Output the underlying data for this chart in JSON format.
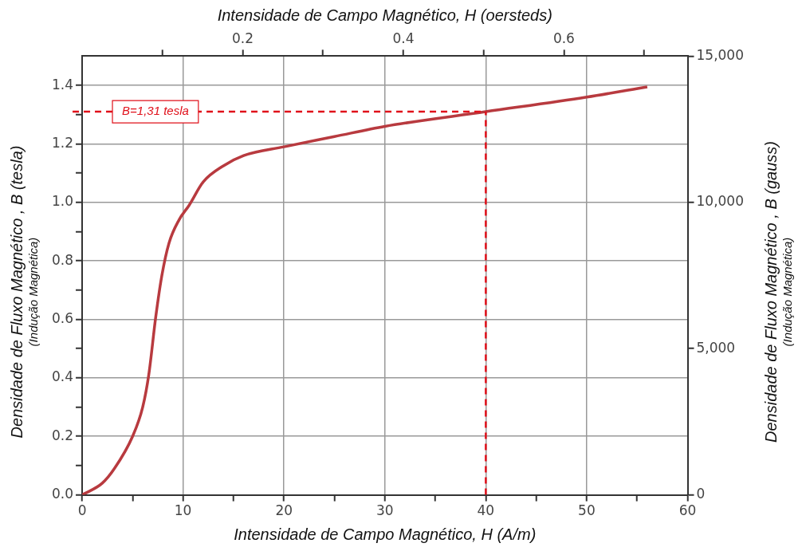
{
  "chart_data": {
    "type": "line",
    "xlabel": "Intensidade de Campo Magnético, H (A/m)",
    "x2label": "Intensidade de Campo Magnético, H (oersteds)",
    "ylabel": "Densidade de Fluxo Magnético , B (tesla)\n(Indução Magnética)",
    "y2label": "Densidade de Fluxo Magnético , B (gauss)\n(Indução Magnética)",
    "xlim": [
      0,
      60
    ],
    "xticks": [
      0,
      {
        "value": 5,
        "label": null
      },
      10,
      {
        "value": 15,
        "label": null
      },
      20,
      {
        "value": 25,
        "label": null
      },
      30,
      {
        "value": 35,
        "label": null
      },
      40,
      {
        "value": 45,
        "label": null
      },
      50,
      {
        "value": 55,
        "label": null
      },
      60
    ],
    "x2lim": [
      0,
      0.754
    ],
    "x2ticks": [
      {
        "value": 0.1,
        "label": null
      },
      0.2,
      {
        "value": 0.3,
        "label": null
      },
      0.4,
      {
        "value": 0.5,
        "label": null
      },
      0.6,
      {
        "value": 0.7,
        "label": null
      }
    ],
    "ylim": [
      0,
      1.5
    ],
    "yticks": [
      {
        "value": 0,
        "label": "0.0"
      },
      {
        "value": 0.1,
        "label": null
      },
      0.2,
      {
        "value": 0.3,
        "label": null
      },
      0.4,
      {
        "value": 0.5,
        "label": null
      },
      0.6,
      {
        "value": 0.7,
        "label": null
      },
      0.8,
      {
        "value": 0.9,
        "label": null
      },
      {
        "value": 1,
        "label": "1.0"
      },
      {
        "value": 1.1,
        "label": null
      },
      1.2,
      {
        "value": 1.3,
        "label": null
      },
      1.4
    ],
    "y2lim": [
      0,
      15000
    ],
    "y2ticks": [
      0,
      {
        "value": 5000,
        "label": "5,000"
      },
      {
        "value": 10000,
        "label": "10,000"
      },
      {
        "value": 15000,
        "label": "15,000"
      }
    ],
    "grid": true,
    "legend": false,
    "marker": "none",
    "line_style": "solid",
    "series": [
      {
        "color": "#b83a3f",
        "x": [
          0,
          2,
          3.2,
          5,
          6,
          6.6,
          7.3,
          7.9,
          8.6,
          9.6,
          10.6,
          12,
          14,
          16,
          20,
          25,
          30,
          40,
          50,
          56
        ],
        "values": [
          0,
          0.04,
          0.09,
          0.2,
          0.3,
          0.41,
          0.61,
          0.75,
          0.86,
          0.94,
          0.99,
          1.07,
          1.125,
          1.16,
          1.19,
          1.225,
          1.26,
          1.31,
          1.36,
          1.395
        ]
      }
    ],
    "ref_lines": [
      {
        "axis": "y",
        "value": 1.31,
        "label": "B=1,31 tesla",
        "color": "#e0101a",
        "line_style": "dashed"
      },
      {
        "axis": "x",
        "value": 40,
        "label": null,
        "color": "#e0101a",
        "line_style": "dashed"
      }
    ]
  }
}
